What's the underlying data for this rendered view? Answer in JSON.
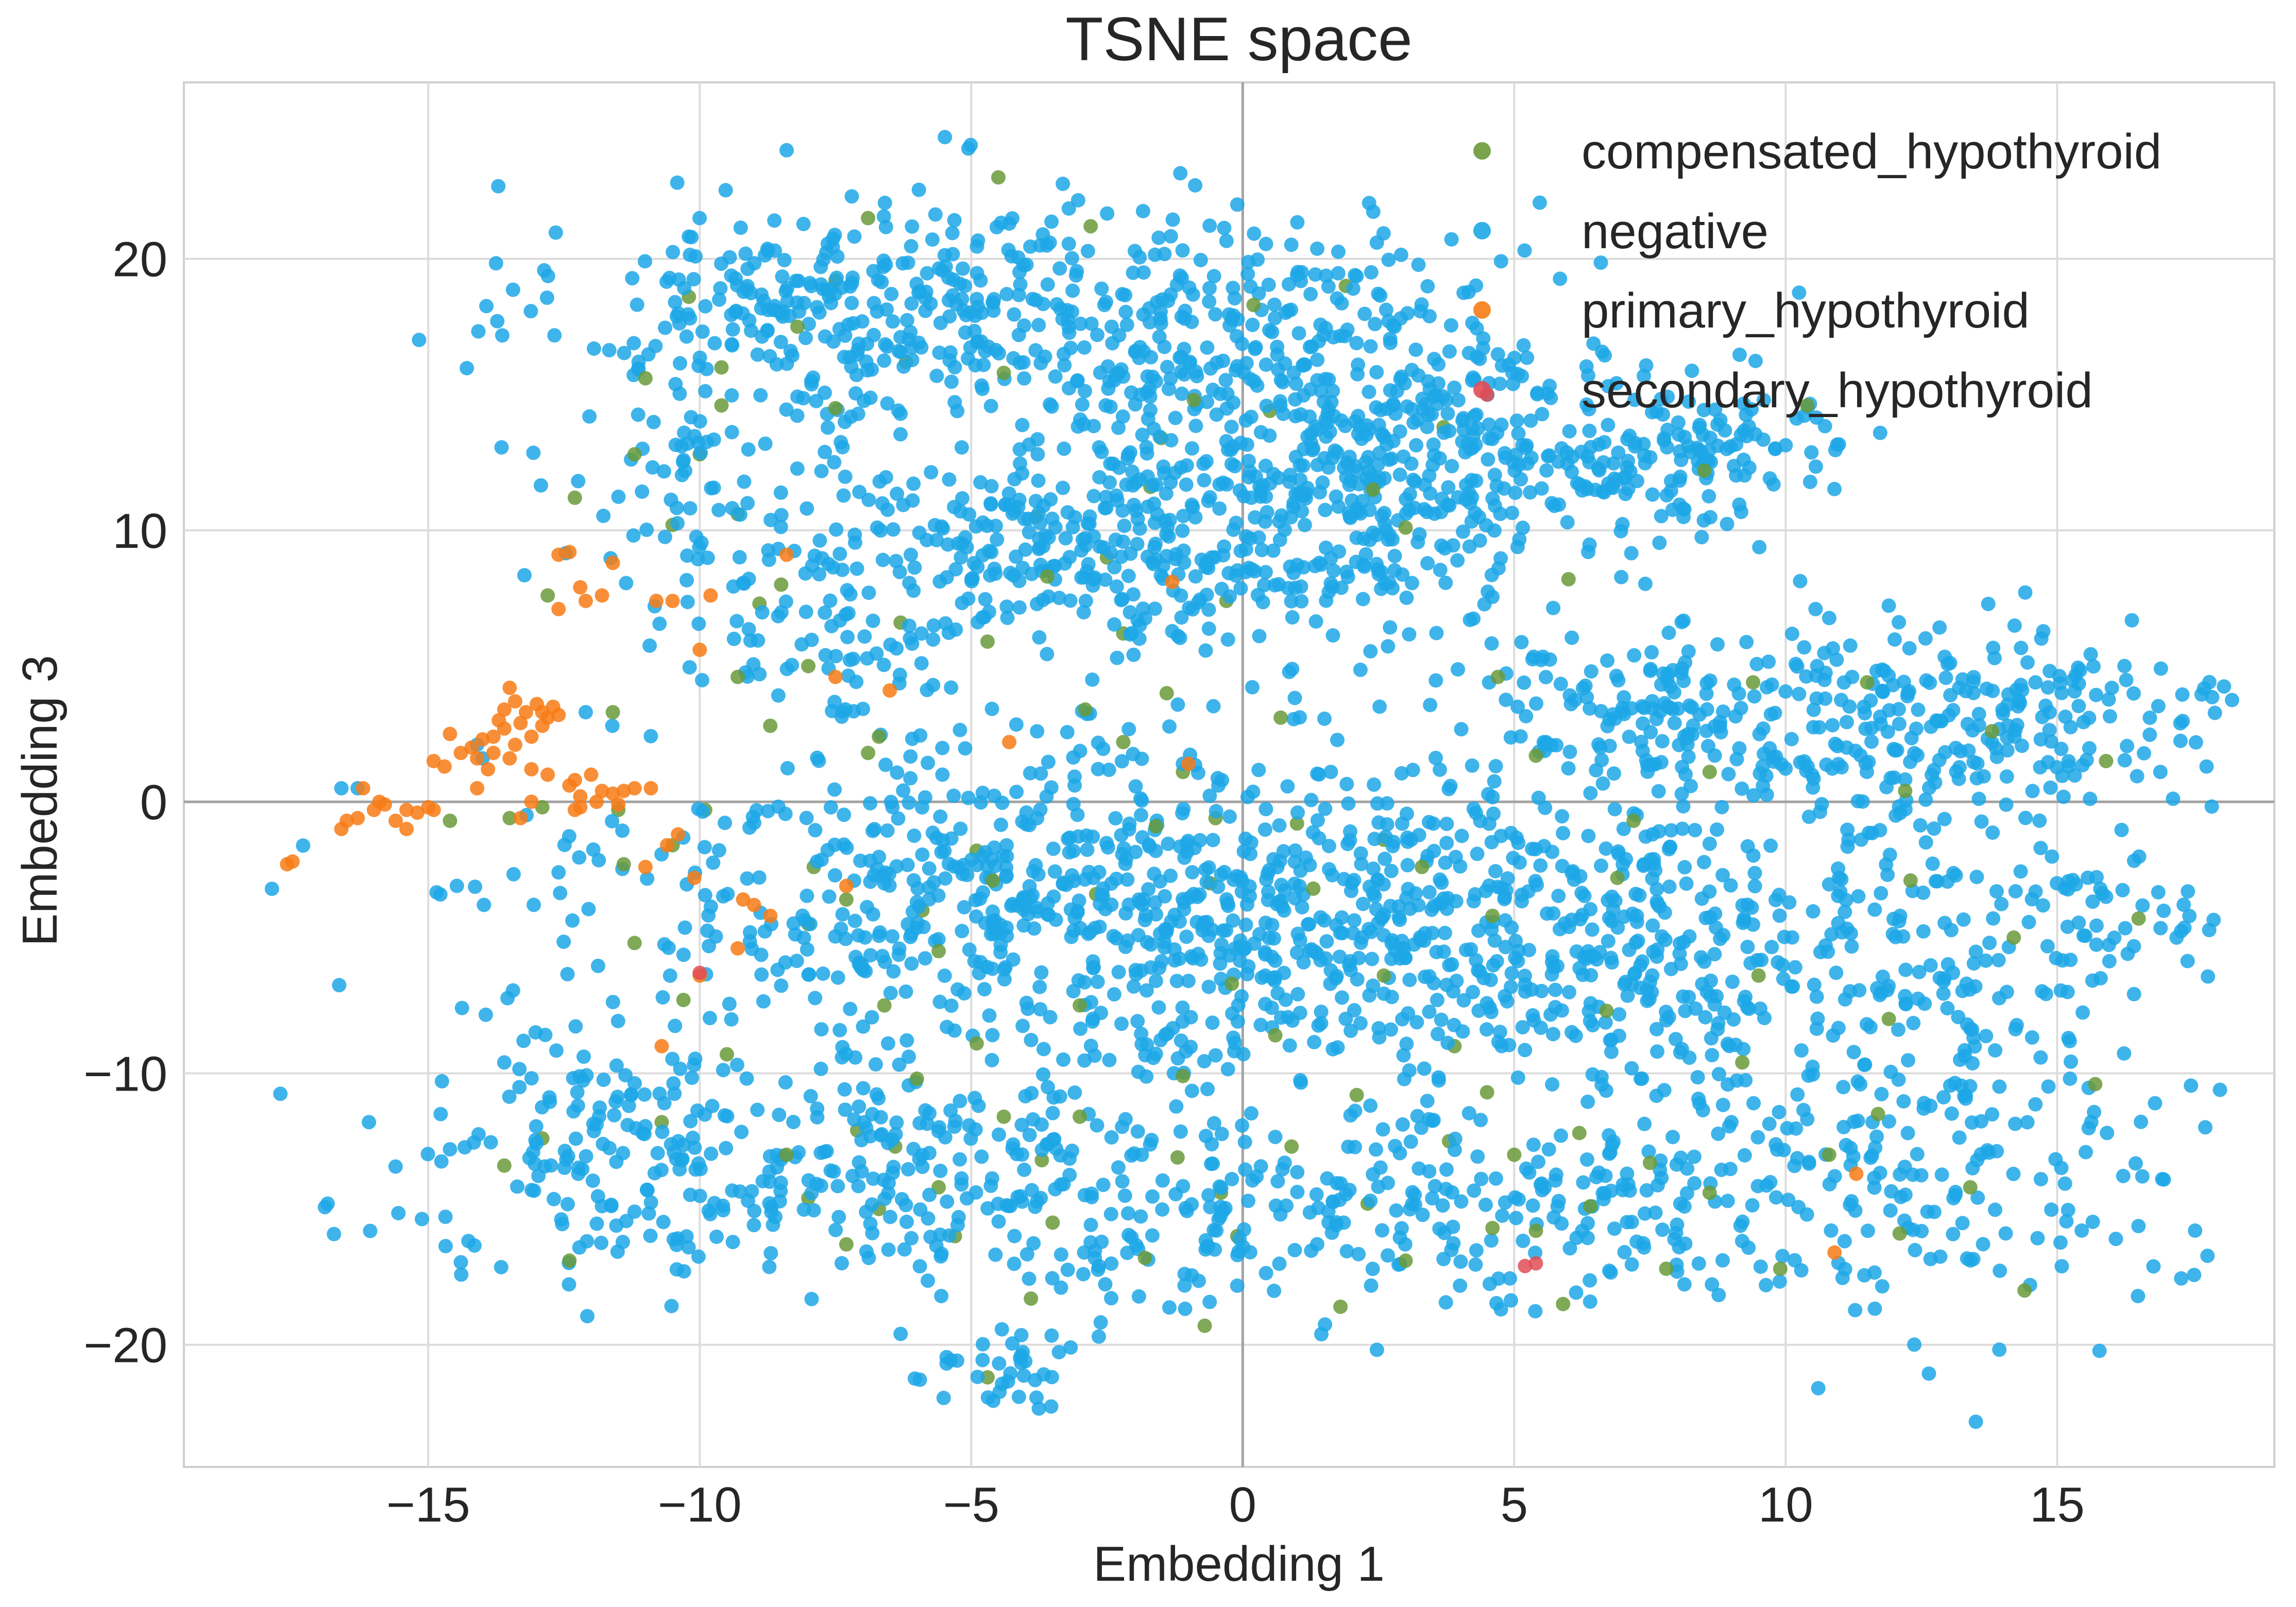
{
  "chart_data": {
    "type": "scatter",
    "title": "TSNE space",
    "xlabel": "Embedding 1",
    "ylabel": "Embedding 3",
    "xlim": [
      -19.5,
      19
    ],
    "ylim": [
      -24.5,
      26.5
    ],
    "xticks": [
      -15,
      -10,
      -5,
      0,
      5,
      10,
      15
    ],
    "yticks": [
      -20,
      -10,
      0,
      10,
      20
    ],
    "xtick_labels": [
      "−15",
      "−10",
      "−5",
      "0",
      "5",
      "10",
      "15"
    ],
    "ytick_labels": [
      "−20",
      "−10",
      "0",
      "10",
      "20"
    ],
    "grid": true,
    "legend_position": "top-right",
    "series": [
      {
        "name": "compensated_hypothyroid",
        "color": "#6a9a3a",
        "count": 150,
        "points": [
          [
            -4.5,
            23
          ],
          [
            -7.5,
            19.2
          ],
          [
            -6.2,
            16.2
          ],
          [
            -10.2,
            18.6
          ],
          [
            -9.6,
            16
          ],
          [
            -10,
            12.8
          ],
          [
            -9.3,
            10.6
          ],
          [
            -10.5,
            10.2
          ],
          [
            -8.5,
            8
          ],
          [
            -8.9,
            7.3
          ],
          [
            -8,
            5
          ],
          [
            -8.7,
            2.8
          ],
          [
            -6.3,
            6.6
          ],
          [
            -4.7,
            5.9
          ],
          [
            -3.8,
            10.5
          ],
          [
            -2.5,
            9
          ],
          [
            -1.5,
            13.4
          ],
          [
            -1.7,
            11.6
          ],
          [
            -0.3,
            7.4
          ],
          [
            1.9,
            19
          ],
          [
            0.5,
            14.4
          ],
          [
            3.7,
            13.8
          ],
          [
            -2.2,
            6.2
          ],
          [
            -1.1,
            1.1
          ],
          [
            -0.5,
            -0.6
          ],
          [
            1,
            -0.8
          ],
          [
            2.6,
            -1.4
          ],
          [
            -0.6,
            -3
          ],
          [
            -2.7,
            -3.4
          ],
          [
            -4.9,
            -1.8
          ],
          [
            -5.9,
            -4
          ],
          [
            -7.3,
            -3.6
          ],
          [
            -8,
            -4.5
          ],
          [
            -7.9,
            -2.4
          ],
          [
            -9.9,
            -0.3
          ],
          [
            -10.5,
            -1.6
          ],
          [
            -11.5,
            -0.3
          ],
          [
            -12.9,
            -0.2
          ],
          [
            -14.6,
            -0.7
          ],
          [
            -13.5,
            -0.6
          ],
          [
            -11.2,
            -5.2
          ],
          [
            -10.7,
            -11.8
          ],
          [
            -12.9,
            -12.4
          ],
          [
            -7.1,
            -12.1
          ],
          [
            -6.4,
            -12.7
          ],
          [
            -8,
            -14.6
          ],
          [
            -6.7,
            -15
          ],
          [
            -5.6,
            -14.2
          ],
          [
            -4.4,
            -11.6
          ],
          [
            -3.7,
            -13.2
          ],
          [
            -7.3,
            -16.3
          ],
          [
            -5.3,
            -16
          ],
          [
            -3.5,
            -15.5
          ],
          [
            -4.7,
            -21.2
          ],
          [
            -0.1,
            -16
          ],
          [
            -0.4,
            -14.4
          ],
          [
            0.9,
            -12.7
          ],
          [
            2.3,
            -14.8
          ],
          [
            3.9,
            -9
          ],
          [
            3.8,
            -12.5
          ],
          [
            4.6,
            -15.7
          ],
          [
            5.4,
            -15.8
          ],
          [
            6.4,
            -14.9
          ],
          [
            7.8,
            -17.2
          ],
          [
            7.5,
            -13.3
          ],
          [
            5,
            -13
          ],
          [
            4.7,
            4.6
          ],
          [
            5.4,
            1.7
          ],
          [
            9.4,
            4.4
          ],
          [
            4.5,
            -10.7
          ],
          [
            1.3,
            -3.2
          ],
          [
            -2.2,
            2.2
          ],
          [
            -5.6,
            -5.5
          ],
          [
            -6.6,
            -7.5
          ],
          [
            -8.4,
            -13
          ],
          [
            -11.4,
            -2.3
          ],
          [
            -10.3,
            -7.3
          ],
          [
            -9.6,
            14.6
          ],
          [
            -11.2,
            12.8
          ],
          [
            -3.6,
            8.3
          ],
          [
            -1.4,
            4
          ],
          [
            -2.9,
            3.4
          ],
          [
            0.7,
            3.1
          ],
          [
            3,
            10.1
          ],
          [
            -0.2,
            -6.7
          ],
          [
            -3,
            -11.6
          ],
          [
            -1.1,
            -10.1
          ],
          [
            2.1,
            -10.8
          ],
          [
            6.2,
            -12.2
          ],
          [
            8.6,
            -14.4
          ],
          [
            10.8,
            -13
          ],
          [
            12.1,
            -15.9
          ],
          [
            13.4,
            -14.2
          ],
          [
            11.9,
            -8
          ],
          [
            9.5,
            -6.4
          ],
          [
            12.3,
            -2.9
          ],
          [
            14.2,
            -5
          ],
          [
            13.8,
            2.6
          ],
          [
            11.5,
            4.4
          ],
          [
            8.6,
            1.1
          ],
          [
            6.9,
            -2.8
          ],
          [
            -6.7,
            2.4
          ],
          [
            -4.4,
            15.8
          ],
          [
            -7.5,
            14.5
          ],
          [
            -8.2,
            17.5
          ],
          [
            -6.9,
            21.5
          ],
          [
            -2.8,
            21.2
          ],
          [
            0.2,
            18.3
          ],
          [
            -12.4,
            -16.9
          ],
          [
            -13.6,
            -13.4
          ],
          [
            -9.5,
            -9.3
          ],
          [
            -4.9,
            -8.9
          ],
          [
            -3,
            -7.5
          ],
          [
            -1.8,
            -16.8
          ],
          [
            -0.7,
            -19.3
          ],
          [
            1.8,
            -18.6
          ],
          [
            3,
            -16.9
          ],
          [
            5.9,
            -18.5
          ],
          [
            9.9,
            -17.2
          ],
          [
            14.4,
            -18
          ],
          [
            15.7,
            -10.4
          ],
          [
            16.5,
            -4.3
          ],
          [
            15.9,
            1.5
          ],
          [
            6,
            8.2
          ],
          [
            8.5,
            12.2
          ],
          [
            10.4,
            14.6
          ],
          [
            -1.6,
            -0.9
          ],
          [
            -4.6,
            -2.9
          ],
          [
            -6.9,
            1.8
          ],
          [
            -9.3,
            4.6
          ],
          [
            -11.6,
            3.3
          ],
          [
            -12.8,
            7.6
          ],
          [
            -12.3,
            11.2
          ],
          [
            -11,
            15.6
          ],
          [
            0.6,
            -8.6
          ],
          [
            2.6,
            -6.4
          ],
          [
            4.6,
            -4.2
          ],
          [
            6.7,
            -7.7
          ],
          [
            9.2,
            -9.6
          ],
          [
            11.7,
            -11.5
          ],
          [
            -6,
            -10.2
          ],
          [
            -3.9,
            -18.3
          ],
          [
            -1.2,
            -13.1
          ],
          [
            3.3,
            -2.4
          ],
          [
            7.2,
            -0.7
          ],
          [
            12.2,
            0.4
          ],
          [
            -0.9,
            14.8
          ],
          [
            2.4,
            11.5
          ]
        ]
      },
      {
        "name": "negative",
        "color": "#1da7e6",
        "count": 3700,
        "points": []
      },
      {
        "name": "primary_hypothyroid",
        "color": "#f77b15",
        "count": 95,
        "points": [
          [
            -17.6,
            -2.3
          ],
          [
            -17.5,
            -2.2
          ],
          [
            -16.6,
            -1
          ],
          [
            -16.5,
            -0.7
          ],
          [
            -16.3,
            -0.6
          ],
          [
            -16.2,
            0.5
          ],
          [
            -16,
            -0.3
          ],
          [
            -15.9,
            0
          ],
          [
            -15.8,
            -0.1
          ],
          [
            -15.6,
            -0.7
          ],
          [
            -15.4,
            -0.3
          ],
          [
            -15.4,
            -1
          ],
          [
            -15.2,
            -0.4
          ],
          [
            -15,
            -0.2
          ],
          [
            -14.9,
            -0.3
          ],
          [
            -14.9,
            1.5
          ],
          [
            -14.6,
            2.5
          ],
          [
            -14.7,
            1.3
          ],
          [
            -14.4,
            1.8
          ],
          [
            -14.2,
            2
          ],
          [
            -14.1,
            1.6
          ],
          [
            -14.1,
            0.5
          ],
          [
            -14,
            2.3
          ],
          [
            -13.9,
            1.2
          ],
          [
            -13.8,
            2.4
          ],
          [
            -13.8,
            1.8
          ],
          [
            -13.7,
            3
          ],
          [
            -13.6,
            3.4
          ],
          [
            -13.6,
            2.7
          ],
          [
            -13.5,
            4.2
          ],
          [
            -13.5,
            1.6
          ],
          [
            -13.4,
            3.7
          ],
          [
            -13.4,
            2.1
          ],
          [
            -13.3,
            2.9
          ],
          [
            -13.3,
            -0.6
          ],
          [
            -13.2,
            3.3
          ],
          [
            -13.1,
            2.4
          ],
          [
            -13.1,
            1.2
          ],
          [
            -13.1,
            0
          ],
          [
            -13,
            3.6
          ],
          [
            -12.9,
            3.3
          ],
          [
            -12.9,
            2.8
          ],
          [
            -12.8,
            3.1
          ],
          [
            -12.8,
            1
          ],
          [
            -12.7,
            3.5
          ],
          [
            -12.6,
            3.2
          ],
          [
            -12.4,
            0.6
          ],
          [
            -12.3,
            0.8
          ],
          [
            -12.3,
            -0.3
          ],
          [
            -12.2,
            -0.2
          ],
          [
            -12.2,
            0.2
          ],
          [
            -12,
            1
          ],
          [
            -11.9,
            0
          ],
          [
            -11.8,
            0.4
          ],
          [
            -11.6,
            0.3
          ],
          [
            -11.5,
            -0.1
          ],
          [
            -11.4,
            0.4
          ],
          [
            -11.2,
            0.5
          ],
          [
            -10.9,
            0.5
          ],
          [
            -12.6,
            9.1
          ],
          [
            -12.4,
            9.2
          ],
          [
            -12.6,
            7.1
          ],
          [
            -12.2,
            7.9
          ],
          [
            -12.1,
            7.4
          ],
          [
            -11.8,
            7.6
          ],
          [
            -11.6,
            8.8
          ],
          [
            -10.8,
            7.4
          ],
          [
            -10.5,
            7.4
          ],
          [
            -10,
            5.6
          ],
          [
            -9.8,
            7.6
          ],
          [
            -8.4,
            9.1
          ],
          [
            -7.5,
            4.6
          ],
          [
            -6.5,
            4.1
          ],
          [
            -4.3,
            2.2
          ],
          [
            -1.3,
            8.1
          ],
          [
            -1,
            1.4
          ],
          [
            -10.4,
            -1.2
          ],
          [
            -10.6,
            -1.6
          ],
          [
            -10.1,
            -2.8
          ],
          [
            -9.2,
            -3.6
          ],
          [
            -9,
            -3.8
          ],
          [
            -8.7,
            -4.2
          ],
          [
            -7.3,
            -3.1
          ],
          [
            -10.7,
            -9
          ],
          [
            -10,
            -6.4
          ],
          [
            -9.3,
            -5.4
          ],
          [
            -11,
            -2.4
          ],
          [
            11.3,
            -13.7
          ],
          [
            10.9,
            -16.6
          ]
        ]
      },
      {
        "name": "secondary_hypothyroid",
        "color": "#e04d55",
        "count": 4,
        "points": [
          [
            4.5,
            15
          ],
          [
            -10,
            -6.3
          ],
          [
            5.2,
            -17.1
          ],
          [
            5.4,
            -17
          ]
        ]
      }
    ]
  }
}
